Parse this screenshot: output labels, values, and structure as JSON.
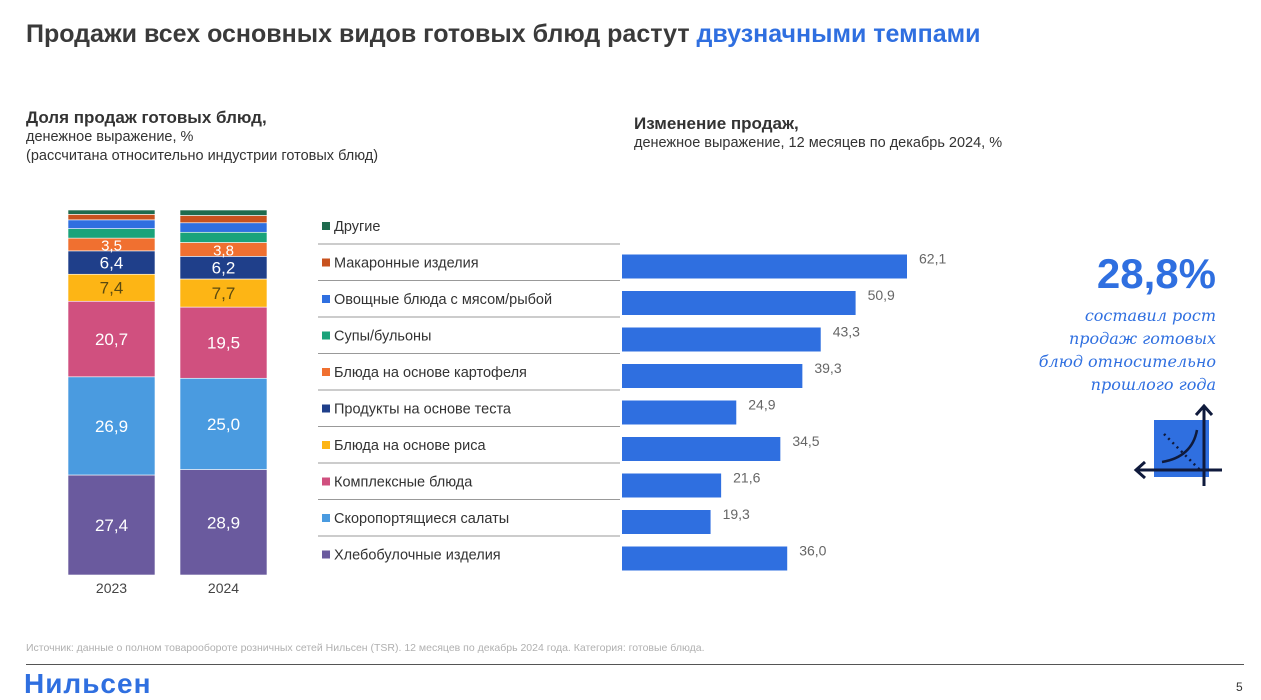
{
  "title": {
    "main": "Продажи всех основных видов готовых блюд растут ",
    "highlight": "двузначными темпами"
  },
  "left_header": {
    "title": "Доля продаж готовых блюд,",
    "line1": "денежное выражение, %",
    "line2": "(рассчитана относительно индустрии готовых блюд)"
  },
  "right_header": {
    "title": "Изменение продаж,",
    "line1": "денежное выражение, 12 месяцев по декабрь 2024, %"
  },
  "highlight": {
    "value": "28,8%",
    "text": [
      "составил рост",
      "продаж готовых",
      "блюд относительно",
      "прошлого года"
    ],
    "icon": "growth-chart-icon"
  },
  "source": "Источник: данные о полном товарообороте розничных сетей Нильсен (TSR). 12 месяцев по декабрь 2024 года. Категория: готовые блюда.",
  "logo": "Нильсен",
  "page_number": "5",
  "chart_data": [
    {
      "type": "stacked-bar",
      "title": "Доля продаж готовых блюд",
      "categories": [
        "2023",
        "2024"
      ],
      "ylim": [
        0,
        100
      ],
      "series": [
        {
          "name": "Хлебобулочные изделия",
          "color": "#6a5a9e",
          "values": [
            27.4,
            28.9
          ],
          "labels": [
            "27,4",
            "28,9"
          ],
          "label_color": "#ffffff"
        },
        {
          "name": "Скоропортящиеся салаты",
          "color": "#4a9be0",
          "values": [
            26.9,
            25.0
          ],
          "labels": [
            "26,9",
            "25,0"
          ],
          "label_color": "#ffffff"
        },
        {
          "name": "Комплексные блюда",
          "color": "#d0507f",
          "values": [
            20.7,
            19.5
          ],
          "labels": [
            "20,7",
            "19,5"
          ],
          "label_color": "#ffffff"
        },
        {
          "name": "Блюда на основе риса",
          "color": "#fdb515",
          "values": [
            7.4,
            7.7
          ],
          "labels": [
            "7,4",
            "7,7"
          ],
          "label_color": "#5a4a10"
        },
        {
          "name": "Продукты на основе теста",
          "color": "#1f3f8a",
          "values": [
            6.4,
            6.2
          ],
          "labels": [
            "6,4",
            "6,2"
          ],
          "label_color": "#ffffff"
        },
        {
          "name": "Блюда на основе картофеля",
          "color": "#f07030",
          "values": [
            3.5,
            3.8
          ],
          "labels": [
            "3,5",
            "3,8"
          ],
          "label_color": "#ffffff"
        },
        {
          "name": "Супы/бульоны",
          "color": "#1aa37a",
          "values": [
            2.6,
            2.8
          ],
          "labels": [
            "",
            ""
          ]
        },
        {
          "name": "Овощные блюда с мясом/рыбой",
          "color": "#2f6fe0",
          "values": [
            2.4,
            2.6
          ],
          "labels": [
            "",
            ""
          ]
        },
        {
          "name": "Макаронные изделия",
          "color": "#c8521e",
          "values": [
            1.5,
            2.0
          ],
          "labels": [
            "",
            ""
          ]
        },
        {
          "name": "Другие",
          "color": "#1e6b4e",
          "values": [
            1.2,
            1.5
          ],
          "labels": [
            "",
            ""
          ]
        }
      ]
    },
    {
      "type": "bar",
      "orientation": "horizontal",
      "title": "Изменение продаж",
      "color": "#2f6fe0",
      "xlim": [
        0,
        62.1
      ],
      "categories": [
        "Другие",
        "Макаронные изделия",
        "Овощные блюда с мясом/рыбой",
        "Супы/бульоны",
        "Блюда на основе картофеля",
        "Продукты на основе теста",
        "Блюда на основе риса",
        "Комплексные блюда",
        "Скоропортящиеся салаты",
        "Хлебобулочные изделия"
      ],
      "legend_colors": [
        "#1e6b4e",
        "#c8521e",
        "#2f6fe0",
        "#1aa37a",
        "#f07030",
        "#1f3f8a",
        "#fdb515",
        "#d0507f",
        "#4a9be0",
        "#6a5a9e"
      ],
      "values": [
        null,
        62.1,
        50.9,
        43.3,
        39.3,
        24.9,
        34.5,
        21.6,
        19.3,
        36.0
      ],
      "labels": [
        "",
        "62,1",
        "50,9",
        "43,3",
        "39,3",
        "24,9",
        "34,5",
        "21,6",
        "19,3",
        "36,0"
      ]
    }
  ]
}
